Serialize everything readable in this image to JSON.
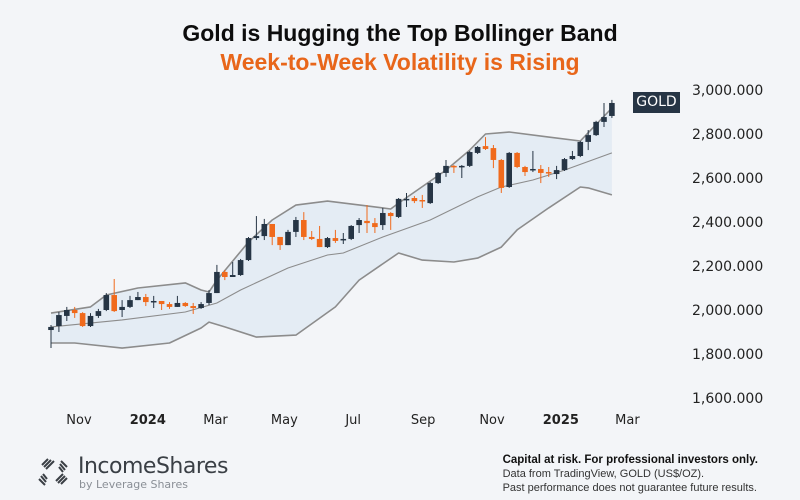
{
  "header": {
    "title": "Gold is Hugging the Top Bollinger Band",
    "subtitle": "Week-to-Week Volatility is Rising"
  },
  "colors": {
    "title": "#0d0d0d",
    "subtitle": "#e8661a",
    "up_candle": "#263545",
    "down_candle": "#f06a1c",
    "band_line": "#8c8c8c",
    "band_fill": "#e4ecf4",
    "tag_bg": "#263545"
  },
  "price_tag": {
    "label": "GOLD"
  },
  "footer": {
    "brand": "IncomeShares",
    "brand_sub": "by Leverage Shares",
    "disclaimer_bold": "Capital at risk. For professional investors only.",
    "disclaimer_source": "Data from TradingView, GOLD (US$/OZ).",
    "disclaimer_past": "Past performance does not guarantee future results."
  },
  "chart_data": {
    "type": "candlestick",
    "title": "Gold is Hugging the Top Bollinger Band",
    "subtitle": "Week-to-Week Volatility is Rising",
    "interval": "weekly",
    "ylim": [
      1600,
      3000
    ],
    "y_ticks": [
      {
        "value": 3000,
        "label": "3,000.000"
      },
      {
        "value": 2800,
        "label": "2,800.000"
      },
      {
        "value": 2600,
        "label": "2,600.000"
      },
      {
        "value": 2400,
        "label": "2,400.000"
      },
      {
        "value": 2200,
        "label": "2,200.000"
      },
      {
        "value": 2000,
        "label": "2,000.000"
      },
      {
        "value": 1800,
        "label": "1,800.000"
      },
      {
        "value": 1600,
        "label": "1,600.000"
      }
    ],
    "x_ticks": [
      {
        "date": "2023-11-01",
        "label": "Nov",
        "bold": false
      },
      {
        "date": "2024-01-01",
        "label": "2024",
        "bold": true
      },
      {
        "date": "2024-03-01",
        "label": "Mar",
        "bold": false
      },
      {
        "date": "2024-05-01",
        "label": "May",
        "bold": false
      },
      {
        "date": "2024-07-01",
        "label": "Jul",
        "bold": false
      },
      {
        "date": "2024-09-01",
        "label": "Sep",
        "bold": false
      },
      {
        "date": "2024-11-01",
        "label": "Nov",
        "bold": false
      },
      {
        "date": "2025-01-01",
        "label": "2025",
        "bold": true
      },
      {
        "date": "2025-03-01",
        "label": "Mar",
        "bold": false
      }
    ],
    "grid": false,
    "candle_fields": [
      "date",
      "open",
      "high",
      "low",
      "close"
    ],
    "candles": [
      [
        "2023-10-09",
        1909,
        1932,
        1827,
        1923
      ],
      [
        "2023-10-16",
        1927,
        1991,
        1900,
        1977
      ],
      [
        "2023-10-23",
        1973,
        2014,
        1950,
        2000
      ],
      [
        "2023-10-30",
        2000,
        2014,
        1964,
        1986
      ],
      [
        "2023-11-06",
        1986,
        1990,
        1923,
        1927
      ],
      [
        "2023-11-13",
        1927,
        1986,
        1923,
        1973
      ],
      [
        "2023-11-20",
        1973,
        2005,
        1964,
        1995
      ],
      [
        "2023-11-27",
        2000,
        2077,
        1995,
        2068
      ],
      [
        "2023-12-04",
        2068,
        2141,
        1991,
        1995
      ],
      [
        "2023-12-11",
        2000,
        2045,
        1968,
        2014
      ],
      [
        "2023-12-18",
        2014,
        2064,
        2009,
        2045
      ],
      [
        "2023-12-25",
        2045,
        2082,
        2045,
        2059
      ],
      [
        "2024-01-01",
        2059,
        2073,
        2018,
        2036
      ],
      [
        "2024-01-08",
        2036,
        2064,
        2009,
        2041
      ],
      [
        "2024-01-15",
        2041,
        2041,
        2000,
        2027
      ],
      [
        "2024-01-22",
        2027,
        2036,
        2005,
        2014
      ],
      [
        "2024-01-29",
        2014,
        2064,
        2014,
        2032
      ],
      [
        "2024-02-05",
        2032,
        2036,
        2014,
        2018
      ],
      [
        "2024-02-12",
        2018,
        2032,
        1982,
        2009
      ],
      [
        "2024-02-19",
        2009,
        2036,
        2005,
        2027
      ],
      [
        "2024-02-26",
        2032,
        2091,
        2023,
        2077
      ],
      [
        "2024-03-04",
        2077,
        2205,
        2077,
        2173
      ],
      [
        "2024-03-11",
        2173,
        2182,
        2136,
        2150
      ],
      [
        "2024-03-18",
        2150,
        2218,
        2150,
        2159
      ],
      [
        "2024-03-25",
        2159,
        2232,
        2155,
        2227
      ],
      [
        "2024-04-01",
        2227,
        2332,
        2223,
        2327
      ],
      [
        "2024-04-08",
        2327,
        2427,
        2318,
        2336
      ],
      [
        "2024-04-15",
        2336,
        2414,
        2318,
        2391
      ],
      [
        "2024-04-22",
        2391,
        2391,
        2295,
        2332
      ],
      [
        "2024-04-29",
        2332,
        2332,
        2273,
        2295
      ],
      [
        "2024-05-06",
        2295,
        2364,
        2295,
        2355
      ],
      [
        "2024-05-13",
        2355,
        2423,
        2332,
        2409
      ],
      [
        "2024-05-20",
        2409,
        2445,
        2318,
        2332
      ],
      [
        "2024-05-27",
        2332,
        2359,
        2318,
        2323
      ],
      [
        "2024-06-03",
        2323,
        2382,
        2286,
        2286
      ],
      [
        "2024-06-10",
        2286,
        2332,
        2282,
        2327
      ],
      [
        "2024-06-17",
        2327,
        2364,
        2305,
        2314
      ],
      [
        "2024-06-24",
        2318,
        2350,
        2300,
        2323
      ],
      [
        "2024-07-01",
        2323,
        2386,
        2318,
        2382
      ],
      [
        "2024-07-08",
        2386,
        2418,
        2350,
        2409
      ],
      [
        "2024-07-15",
        2405,
        2477,
        2350,
        2395
      ],
      [
        "2024-07-22",
        2395,
        2418,
        2350,
        2377
      ],
      [
        "2024-07-29",
        2386,
        2464,
        2364,
        2441
      ],
      [
        "2024-08-05",
        2441,
        2445,
        2364,
        2427
      ],
      [
        "2024-08-12",
        2423,
        2509,
        2418,
        2505
      ],
      [
        "2024-08-19",
        2503,
        2532,
        2468,
        2505
      ],
      [
        "2024-08-26",
        2509,
        2518,
        2486,
        2495
      ],
      [
        "2024-09-02",
        2500,
        2523,
        2464,
        2495
      ],
      [
        "2024-09-09",
        2486,
        2582,
        2482,
        2577
      ],
      [
        "2024-09-16",
        2577,
        2627,
        2573,
        2623
      ],
      [
        "2024-09-23",
        2623,
        2682,
        2605,
        2655
      ],
      [
        "2024-09-30",
        2655,
        2659,
        2623,
        2650
      ],
      [
        "2024-10-07",
        2650,
        2659,
        2600,
        2655
      ],
      [
        "2024-10-14",
        2655,
        2723,
        2650,
        2718
      ],
      [
        "2024-10-21",
        2714,
        2745,
        2709,
        2741
      ],
      [
        "2024-10-28",
        2745,
        2786,
        2727,
        2732
      ],
      [
        "2024-11-04",
        2736,
        2750,
        2645,
        2682
      ],
      [
        "2024-11-11",
        2682,
        2686,
        2532,
        2555
      ],
      [
        "2024-11-18",
        2559,
        2718,
        2555,
        2714
      ],
      [
        "2024-11-25",
        2714,
        2718,
        2645,
        2650
      ],
      [
        "2024-12-02",
        2650,
        2655,
        2609,
        2627
      ],
      [
        "2024-12-09",
        2636,
        2723,
        2627,
        2641
      ],
      [
        "2024-12-16",
        2641,
        2659,
        2577,
        2623
      ],
      [
        "2024-12-23",
        2627,
        2650,
        2605,
        2623
      ],
      [
        "2024-12-30",
        2618,
        2655,
        2595,
        2636
      ],
      [
        "2025-01-06",
        2636,
        2691,
        2632,
        2686
      ],
      [
        "2025-01-13",
        2686,
        2723,
        2682,
        2700
      ],
      [
        "2025-01-20",
        2700,
        2768,
        2695,
        2764
      ],
      [
        "2025-01-27",
        2764,
        2818,
        2727,
        2795
      ],
      [
        "2025-02-03",
        2795,
        2860,
        2791,
        2855
      ],
      [
        "2025-02-10",
        2855,
        2941,
        2832,
        2877
      ],
      [
        "2025-02-17",
        2882,
        2955,
        2873,
        2941
      ]
    ],
    "bollinger": {
      "upper": [
        [
          "2023-10-09",
          1986
        ],
        [
          "2023-11-13",
          2014
        ],
        [
          "2023-11-27",
          2068
        ],
        [
          "2023-12-25",
          2100
        ],
        [
          "2024-02-05",
          2123
        ],
        [
          "2024-02-19",
          2091
        ],
        [
          "2024-02-26",
          2082
        ],
        [
          "2024-03-04",
          2136
        ],
        [
          "2024-04-01",
          2309
        ],
        [
          "2024-04-22",
          2409
        ],
        [
          "2024-05-13",
          2477
        ],
        [
          "2024-06-10",
          2495
        ],
        [
          "2024-07-15",
          2473
        ],
        [
          "2024-08-05",
          2459
        ],
        [
          "2024-08-12",
          2486
        ],
        [
          "2024-09-23",
          2636
        ],
        [
          "2024-10-14",
          2727
        ],
        [
          "2024-10-28",
          2800
        ],
        [
          "2024-11-18",
          2809
        ],
        [
          "2024-12-23",
          2786
        ],
        [
          "2025-01-20",
          2768
        ],
        [
          "2025-02-17",
          2918
        ]
      ],
      "middle": [
        [
          "2023-10-09",
          1923
        ],
        [
          "2023-12-11",
          1955
        ],
        [
          "2024-02-05",
          1991
        ],
        [
          "2024-03-04",
          2032
        ],
        [
          "2024-03-25",
          2091
        ],
        [
          "2024-05-06",
          2191
        ],
        [
          "2024-06-10",
          2250
        ],
        [
          "2024-06-24",
          2259
        ],
        [
          "2024-07-29",
          2332
        ],
        [
          "2024-09-09",
          2409
        ],
        [
          "2024-10-21",
          2514
        ],
        [
          "2024-11-11",
          2559
        ],
        [
          "2024-12-09",
          2591
        ],
        [
          "2025-01-06",
          2636
        ],
        [
          "2025-02-17",
          2714
        ]
      ],
      "lower": [
        [
          "2023-10-09",
          1850
        ],
        [
          "2023-10-30",
          1850
        ],
        [
          "2023-12-11",
          1827
        ],
        [
          "2024-01-22",
          1850
        ],
        [
          "2024-02-19",
          1918
        ],
        [
          "2024-02-26",
          1945
        ],
        [
          "2024-03-11",
          1923
        ],
        [
          "2024-04-08",
          1877
        ],
        [
          "2024-05-13",
          1886
        ],
        [
          "2024-06-17",
          2014
        ],
        [
          "2024-07-08",
          2136
        ],
        [
          "2024-08-12",
          2259
        ],
        [
          "2024-09-02",
          2227
        ],
        [
          "2024-09-30",
          2218
        ],
        [
          "2024-10-21",
          2236
        ],
        [
          "2024-11-11",
          2286
        ],
        [
          "2024-11-25",
          2364
        ],
        [
          "2024-12-23",
          2464
        ],
        [
          "2025-01-20",
          2559
        ],
        [
          "2025-01-27",
          2555
        ],
        [
          "2025-02-17",
          2523
        ]
      ]
    },
    "last_price_label": "GOLD"
  }
}
